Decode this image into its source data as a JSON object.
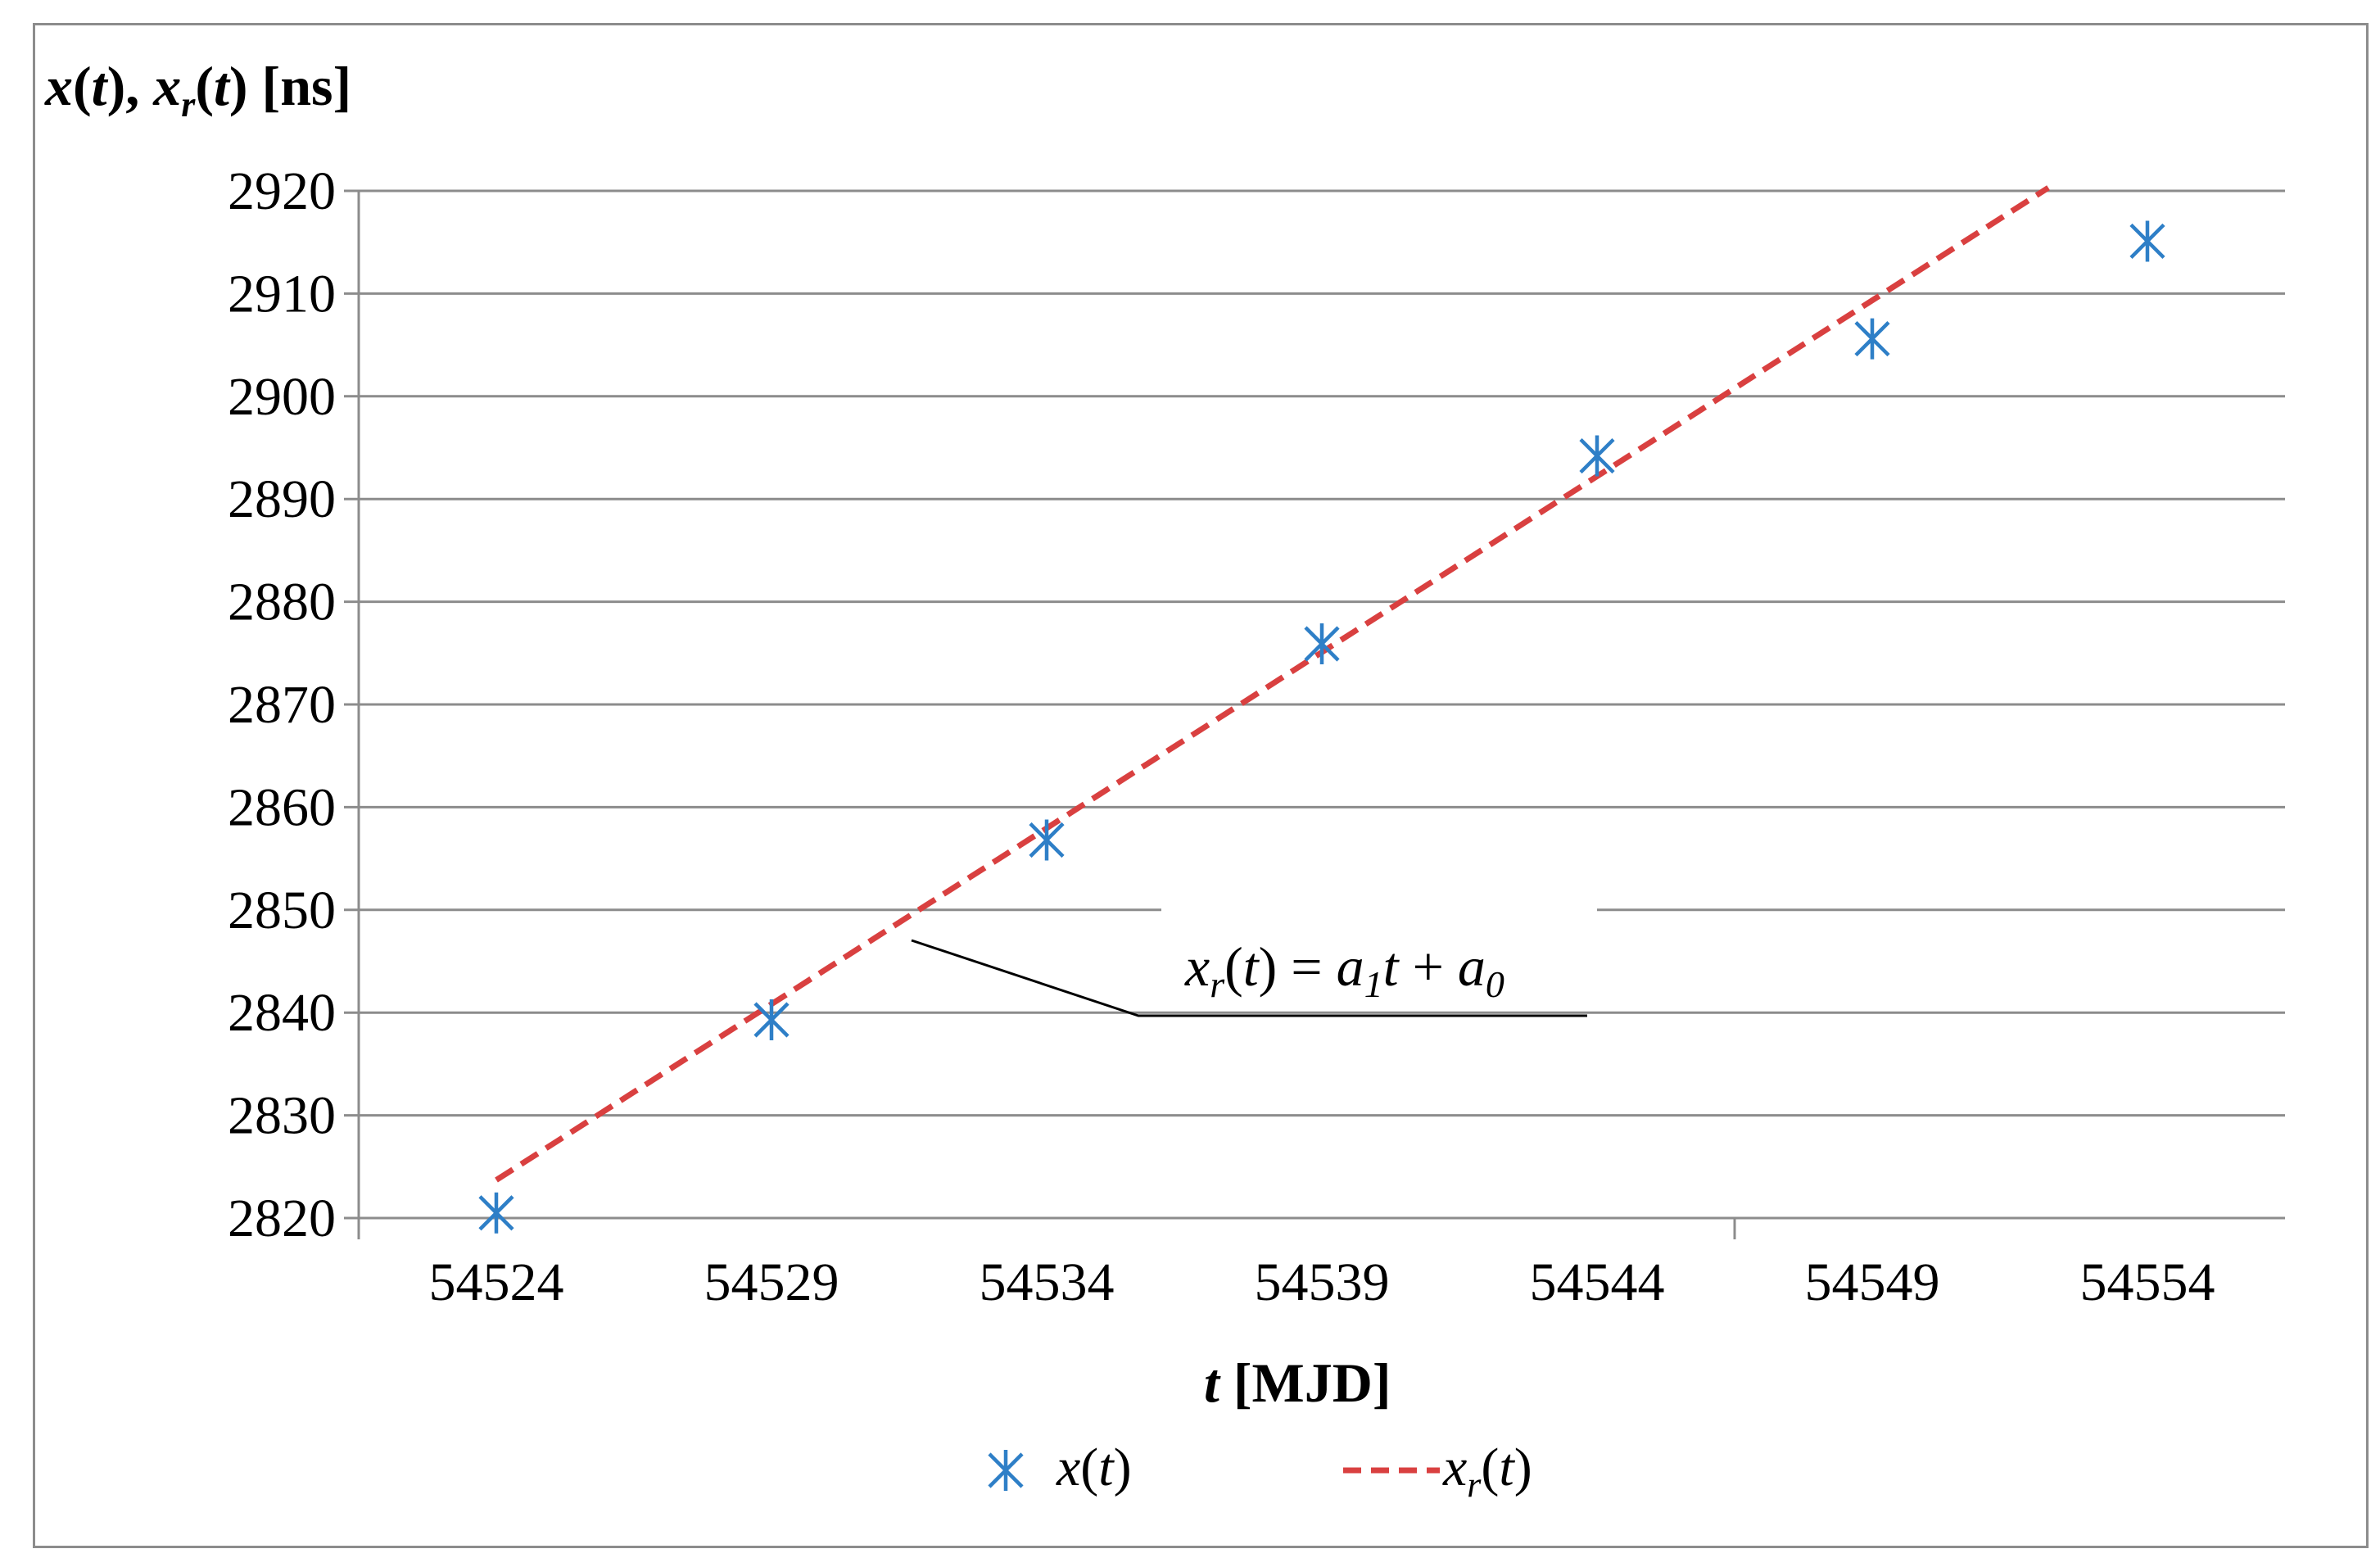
{
  "chart_data": {
    "type": "scatter",
    "ylabel": "x(t), x_r(t) [ns]",
    "xlabel": "t [MJD]",
    "x_ticks": [
      54524,
      54529,
      54534,
      54539,
      54544,
      54549,
      54554
    ],
    "y_ticks": [
      2820,
      2830,
      2840,
      2850,
      2860,
      2870,
      2880,
      2890,
      2900,
      2910,
      2920
    ],
    "xlim": [
      54521.5,
      54556.5
    ],
    "ylim": [
      2820,
      2920
    ],
    "grid": "horizontal",
    "legend_position": "bottom",
    "annotation": "x_r(t) = a_1 t + a_0",
    "series": [
      {
        "name": "x(t)",
        "marker": "asterisk",
        "color": "#2e7fc7",
        "x": [
          54524,
          54529,
          54534,
          54539,
          54544,
          54549,
          54554
        ],
        "y": [
          2820.5,
          2839.3,
          2856.8,
          2875.9,
          2894.2,
          2905.6,
          2915.1
        ]
      },
      {
        "name": "x_r(t)",
        "line": "dashed",
        "color": "#d94040",
        "x": [
          54524,
          54552.2
        ],
        "y": [
          2823.7,
          2920.3
        ]
      }
    ]
  }
}
